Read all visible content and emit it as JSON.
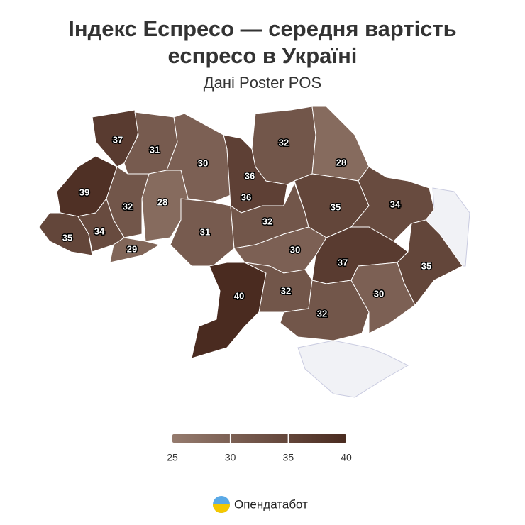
{
  "chart_data": {
    "type": "choropleth",
    "title": "Індекс Еспресо — середня вартість еспресо в Україні",
    "subtitle": "Дані Poster POS",
    "values": [
      37,
      31,
      30,
      36,
      36,
      32,
      28,
      39,
      32,
      28,
      35,
      34,
      29,
      31,
      32,
      35,
      34,
      30,
      37,
      35,
      40,
      32,
      32,
      30
    ],
    "colorbar": {
      "range": [
        25,
        40
      ],
      "ticks": [
        25,
        30,
        35,
        40
      ],
      "colors": [
        "#957b6e",
        "#4a2b20"
      ]
    },
    "no_data_color": "#f1f2f6",
    "brand": "Опендатабот"
  }
}
